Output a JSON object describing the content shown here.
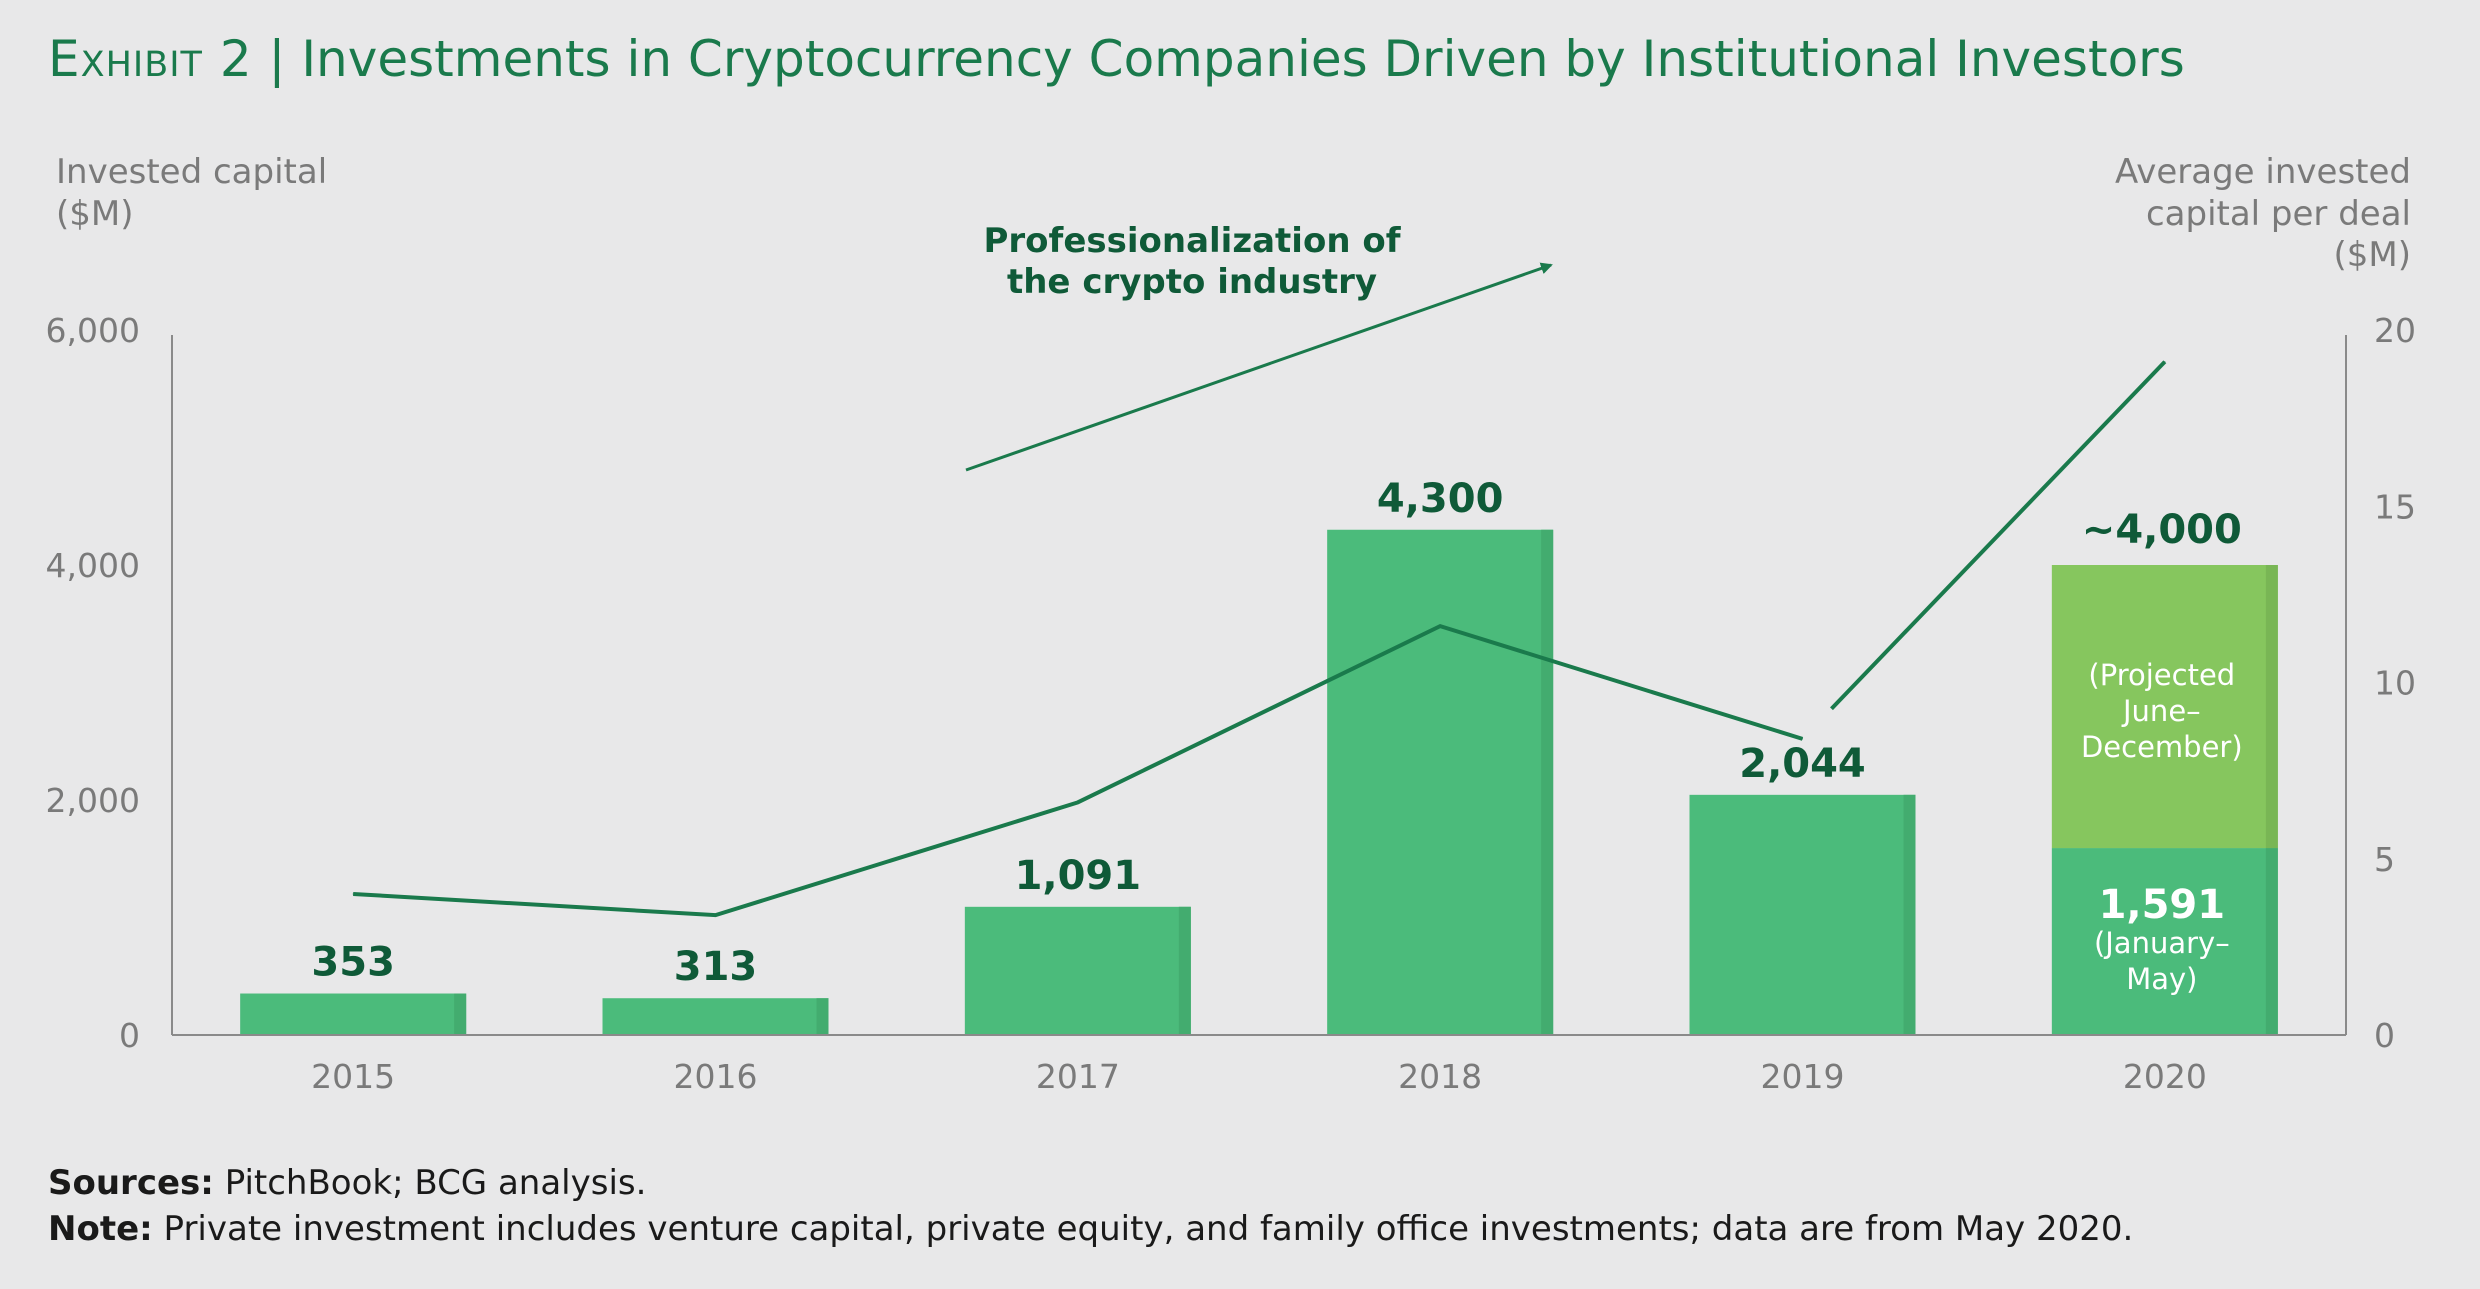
{
  "title": {
    "exhibit": "Exhibit 2",
    "separator": "|",
    "text": "Investments in Cryptocurrency Companies Driven by Institutional Investors"
  },
  "annotation": {
    "line1": "Professionalization of",
    "line2": "the crypto industry"
  },
  "notes": {
    "sources_label": "Sources:",
    "sources_text": "PitchBook; BCG analysis.",
    "note_label": "Note:",
    "note_text": "Private investment includes venture capital, private equity, and family office investments; data are from May 2020."
  },
  "colors": {
    "bar": "#4bbb7b",
    "bar_shade": "#43ac6f",
    "projected": "#86c65e",
    "projected_shade": "#79b655",
    "line": "#1a7a4c",
    "label_dark": "#0f5a38",
    "axis": "#8a8a8a",
    "axis_text": "#7a7a7a"
  },
  "chart_data": {
    "type": "bar",
    "categories": [
      "2015",
      "2016",
      "2017",
      "2018",
      "2019",
      "2020"
    ],
    "y_left": {
      "label_line1": "Invested capital",
      "label_line2": "($M)",
      "range": [
        0,
        6000
      ],
      "ticks": [
        0,
        2000,
        4000,
        6000
      ],
      "tick_labels": [
        "0",
        "2,000",
        "4,000",
        "6,000"
      ]
    },
    "y_right": {
      "label_line1": "Average invested",
      "label_line2": "capital per deal",
      "label_line3": "($M)",
      "range": [
        0,
        20
      ],
      "ticks": [
        0,
        5,
        10,
        15,
        20
      ],
      "tick_labels": [
        "0",
        "5",
        "10",
        "15",
        "20"
      ]
    },
    "series": [
      {
        "name": "Invested capital",
        "axis": "left",
        "values": [
          353,
          313,
          1091,
          4300,
          2044,
          1591
        ],
        "labels": [
          "353",
          "313",
          "1,091",
          "4,300",
          "2,044",
          "1,591"
        ]
      },
      {
        "name": "Projected June–December 2020",
        "axis": "left",
        "values": [
          0,
          0,
          0,
          0,
          0,
          2409
        ],
        "total_label": "~4,000",
        "label_lines": [
          "(Projected",
          "June–",
          "December)"
        ],
        "actual_label_lines": [
          "(January–",
          "May)"
        ]
      },
      {
        "name": "Average invested capital per deal",
        "axis": "right",
        "type": "line",
        "values": [
          4.0,
          3.4,
          6.6,
          11.6,
          8.4,
          19.1
        ]
      }
    ]
  }
}
